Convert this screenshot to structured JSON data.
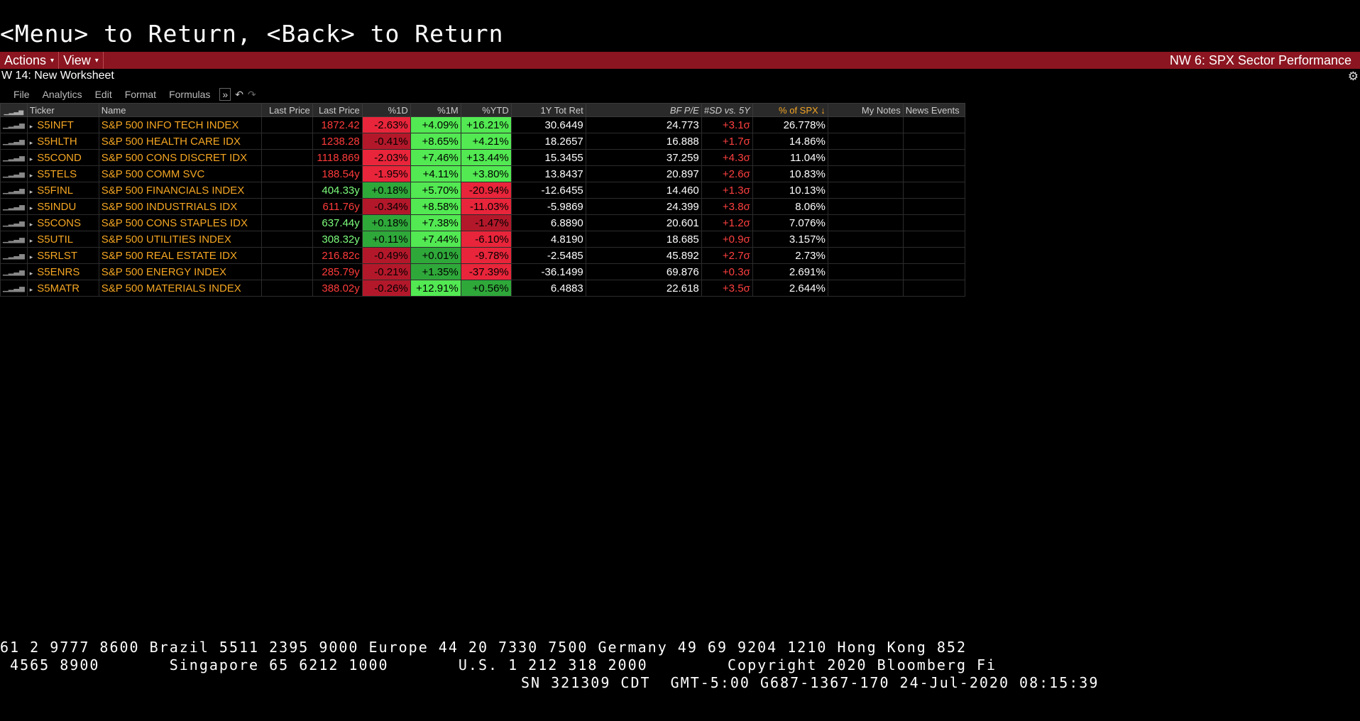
{
  "command_line": "<Menu> to Return, <Back> to Return",
  "topbar": {
    "actions_label": "Actions",
    "view_label": "View",
    "title": "NW 6: SPX Sector Performance"
  },
  "worksheet": {
    "title": "W 14: New Worksheet"
  },
  "submenu": {
    "file": "File",
    "analytics": "Analytics",
    "edit": "Edit",
    "format": "Format",
    "formulas": "Formulas"
  },
  "icons": {
    "gear": "gear-icon",
    "undo": "undo-icon",
    "redo": "redo-icon",
    "expand": "double-chevron-icon",
    "signal": "signal-bars-icon"
  },
  "colors": {
    "accent_red_bar": "#8b1520",
    "ticker_orange": "#f5a623",
    "neg_bg": "#e8253a",
    "pos_bg": "#52e952"
  },
  "table": {
    "headers": [
      "Ticker",
      "Name",
      "Last Price",
      "Last Price",
      "%1D",
      "%1M",
      "%YTD",
      "1Y Tot Ret",
      "BF P/E",
      "#SD vs. 5Y",
      "% of SPX ↓",
      "My Notes",
      "News Events"
    ],
    "rows": [
      {
        "ticker": "S5INFT",
        "name": "S&P 500 INFO TECH INDEX",
        "lp1": "",
        "lp2": "1872.42",
        "d1": "-2.63%",
        "m1": "+4.09%",
        "ytd": "+16.21%",
        "tot": "30.6449",
        "pe": "24.773",
        "sd": "+3.1σ",
        "spx": "26.778%"
      },
      {
        "ticker": "S5HLTH",
        "name": "S&P 500 HEALTH CARE IDX",
        "lp1": "",
        "lp2": "1238.28",
        "d1": "-0.41%",
        "m1": "+8.65%",
        "ytd": "+4.21%",
        "tot": "18.2657",
        "pe": "16.888",
        "sd": "+1.7σ",
        "spx": "14.86%"
      },
      {
        "ticker": "S5COND",
        "name": "S&P 500 CONS DISCRET IDX",
        "lp1": "",
        "lp2": "1118.869",
        "d1": "-2.03%",
        "m1": "+7.46%",
        "ytd": "+13.44%",
        "tot": "15.3455",
        "pe": "37.259",
        "sd": "+4.3σ",
        "spx": "11.04%"
      },
      {
        "ticker": "S5TELS",
        "name": "S&P 500 COMM SVC",
        "lp1": "",
        "lp2": "188.54y",
        "d1": "-1.95%",
        "m1": "+4.11%",
        "ytd": "+3.80%",
        "tot": "13.8437",
        "pe": "20.897",
        "sd": "+2.6σ",
        "spx": "10.83%"
      },
      {
        "ticker": "S5FINL",
        "name": "S&P 500 FINANCIALS INDEX",
        "lp1": "",
        "lp2": "404.33y",
        "d1": "+0.18%",
        "m1": "+5.70%",
        "ytd": "-20.94%",
        "tot": "-12.6455",
        "pe": "14.460",
        "sd": "+1.3σ",
        "spx": "10.13%"
      },
      {
        "ticker": "S5INDU",
        "name": "S&P 500 INDUSTRIALS IDX",
        "lp1": "",
        "lp2": "611.76y",
        "d1": "-0.34%",
        "m1": "+8.58%",
        "ytd": "-11.03%",
        "tot": "-5.9869",
        "pe": "24.399",
        "sd": "+3.8σ",
        "spx": "8.06%"
      },
      {
        "ticker": "S5CONS",
        "name": "S&P 500 CONS STAPLES IDX",
        "lp1": "",
        "lp2": "637.44y",
        "d1": "+0.18%",
        "m1": "+7.38%",
        "ytd": "-1.47%",
        "tot": "6.8890",
        "pe": "20.601",
        "sd": "+1.2σ",
        "spx": "7.076%"
      },
      {
        "ticker": "S5UTIL",
        "name": "S&P 500 UTILITIES INDEX",
        "lp1": "",
        "lp2": "308.32y",
        "d1": "+0.11%",
        "m1": "+7.44%",
        "ytd": "-6.10%",
        "tot": "4.8190",
        "pe": "18.685",
        "sd": "+0.9σ",
        "spx": "3.157%"
      },
      {
        "ticker": "S5RLST",
        "name": "S&P 500 REAL ESTATE IDX",
        "lp1": "",
        "lp2": "216.82c",
        "d1": "-0.49%",
        "m1": "+0.01%",
        "ytd": "-9.78%",
        "tot": "-2.5485",
        "pe": "45.892",
        "sd": "+2.7σ",
        "spx": "2.73%"
      },
      {
        "ticker": "S5ENRS",
        "name": "S&P 500 ENERGY INDEX",
        "lp1": "",
        "lp2": "285.79y",
        "d1": "-0.21%",
        "m1": "+1.35%",
        "ytd": "-37.39%",
        "tot": "-36.1499",
        "pe": "69.876",
        "sd": "+0.3σ",
        "spx": "2.691%"
      },
      {
        "ticker": "S5MATR",
        "name": "S&P 500 MATERIALS INDEX",
        "lp1": "",
        "lp2": "388.02y",
        "d1": "-0.26%",
        "m1": "+12.91%",
        "ytd": "+0.56%",
        "tot": "6.4883",
        "pe": "22.618",
        "sd": "+3.5σ",
        "spx": "2.644%"
      }
    ]
  },
  "footer": {
    "line1": "61 2 9777 8600 Brazil 5511 2395 9000 Europe 44 20 7330 7500 Germany 49 69 9204 1210 Hong Kong 852",
    "line2": " 4565 8900       Singapore 65 6212 1000       U.S. 1 212 318 2000        Copyright 2020 Bloomberg Fi",
    "line3": "SN 321309 CDT  GMT-5:00 G687-1367-170 24-Jul-2020 08:15:39"
  }
}
